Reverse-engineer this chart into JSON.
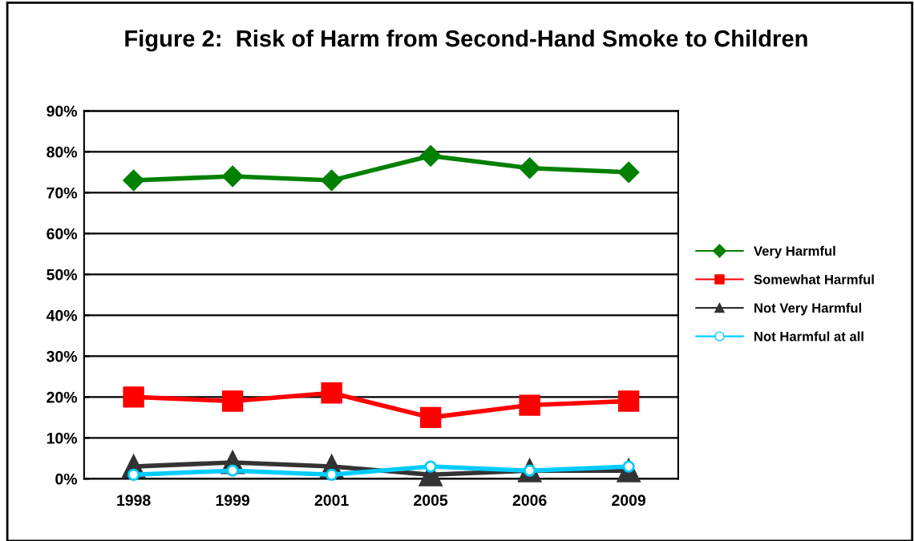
{
  "chart_data": {
    "type": "line",
    "title": "Figure 2:  Risk of Harm from Second-Hand Smoke to Children",
    "categories": [
      "1998",
      "1999",
      "2001",
      "2005",
      "2006",
      "2009"
    ],
    "series": [
      {
        "name": "Very Harmful",
        "color": "#008000",
        "marker": "diamond",
        "values": [
          73,
          74,
          73,
          79,
          76,
          75
        ]
      },
      {
        "name": "Somewhat Harmful",
        "color": "#ff0000",
        "marker": "square",
        "values": [
          20,
          19,
          21,
          15,
          18,
          19
        ]
      },
      {
        "name": "Not Very Harmful",
        "color": "#333333",
        "marker": "triangle",
        "values": [
          3,
          4,
          3,
          1,
          2,
          2
        ]
      },
      {
        "name": "Not Harmful at all",
        "color": "#00ccff",
        "marker": "circle",
        "values": [
          1,
          2,
          1,
          3,
          2,
          3
        ]
      }
    ],
    "ylim": [
      0,
      90
    ],
    "yticks": [
      {
        "value": 0,
        "label": "0%"
      },
      {
        "value": 10,
        "label": "10%"
      },
      {
        "value": 20,
        "label": "20%"
      },
      {
        "value": 30,
        "label": "30%"
      },
      {
        "value": 40,
        "label": "40%"
      },
      {
        "value": 50,
        "label": "50%"
      },
      {
        "value": 60,
        "label": "60%"
      },
      {
        "value": 70,
        "label": "70%"
      },
      {
        "value": 80,
        "label": "80%"
      },
      {
        "value": 90,
        "label": "90%"
      }
    ],
    "grid": "y",
    "legend": "right",
    "line_style": "solid"
  }
}
